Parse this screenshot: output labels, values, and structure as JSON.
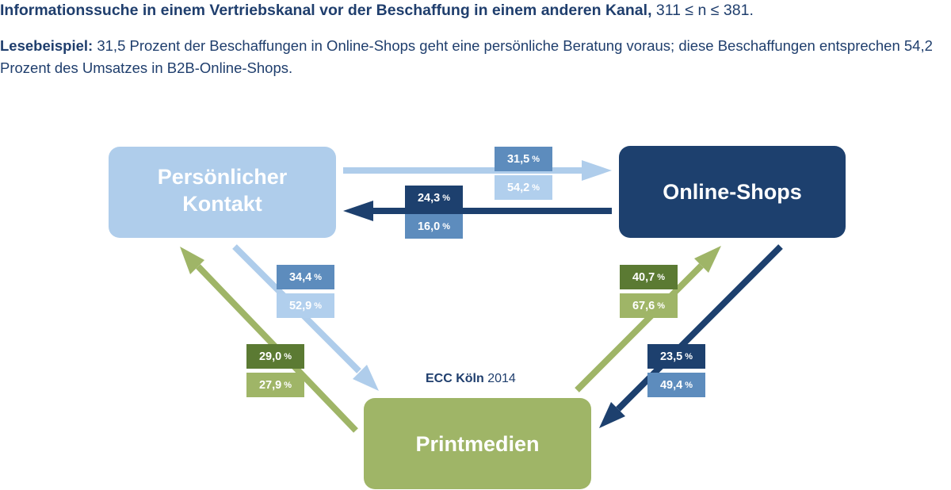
{
  "header": {
    "title_bold": "Informationssuche in einem Vertriebskanal vor der Beschaffung in einem anderen Kanal,",
    "title_n": "311 ≤ n ≤ 381.",
    "reading_bold": "Lesebeispiel:",
    "reading_text": "31,5 Prozent der Beschaffungen in Online-Shops geht eine persönliche Beratung voraus; diese Beschaffungen entsprechen 54,2 Prozent des Umsatzes in B2B-Online-Shops."
  },
  "nodes": {
    "personal": {
      "line1": "Persönlicher",
      "line2": "Kontakt"
    },
    "online": "Online-Shops",
    "print": "Printmedien"
  },
  "percent_sign": "%",
  "flows": {
    "personal_to_online": {
      "top": "31,5",
      "bottom": "54,2"
    },
    "online_to_personal": {
      "top": "24,3",
      "bottom": "16,0"
    },
    "personal_to_print": {
      "top": "34,4",
      "bottom": "52,9"
    },
    "print_to_personal": {
      "top": "29,0",
      "bottom": "27,9"
    },
    "print_to_online": {
      "top": "40,7",
      "bottom": "67,6"
    },
    "online_to_print": {
      "top": "23,5",
      "bottom": "49,4"
    }
  },
  "source": {
    "bold": "ECC Köln",
    "year": "2014"
  },
  "colors": {
    "dark_navy": "#1d406e",
    "medium_blue": "#5d8cbd",
    "light_blue": "#b1cfed",
    "dark_green": "#5b7a33",
    "light_green": "#9fb567"
  }
}
